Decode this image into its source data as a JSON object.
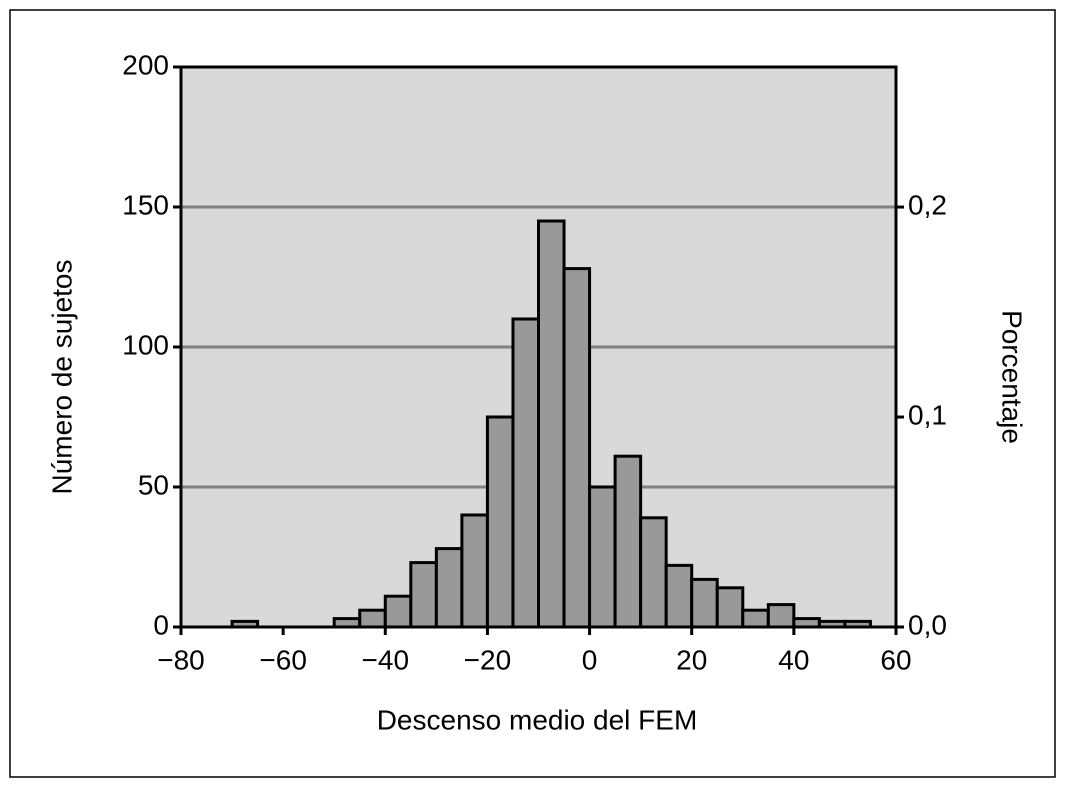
{
  "chart_data": {
    "type": "histogram",
    "x_label": "Descenso medio del FEM",
    "y_label": "Número de sujetos",
    "y2_label": "Porcentaje",
    "bins": [
      -70,
      -65,
      -60,
      -55,
      -50,
      -45,
      -40,
      -35,
      -30,
      -25,
      -20,
      -15,
      -10,
      -5,
      0,
      5,
      10,
      15,
      20,
      25,
      30,
      35,
      40,
      45,
      50,
      55
    ],
    "values": [
      2,
      0,
      0,
      0,
      3,
      6,
      11,
      23,
      28,
      40,
      75,
      110,
      145,
      128,
      50,
      61,
      39,
      22,
      17,
      14,
      6,
      8,
      3,
      2,
      2
    ],
    "color": "#999999",
    "background": "#d9d9d9",
    "grid": true,
    "xlim": [
      -80,
      60
    ],
    "xticks": [
      {
        "value": -80,
        "label": "−80"
      },
      {
        "value": -60,
        "label": "−60"
      },
      {
        "value": -40,
        "label": "−40"
      },
      {
        "value": -20,
        "label": "−20"
      },
      0,
      20,
      40,
      60
    ],
    "ylim": [
      0,
      200
    ],
    "yticks": [
      0,
      50,
      100,
      150,
      200
    ],
    "y2lim": [
      0,
      0.2667
    ],
    "y2ticks": [
      {
        "value": 0,
        "label": "0,0"
      },
      {
        "value": 0.1,
        "label": "0,1"
      },
      {
        "value": 0.2,
        "label": "0,2"
      }
    ]
  }
}
